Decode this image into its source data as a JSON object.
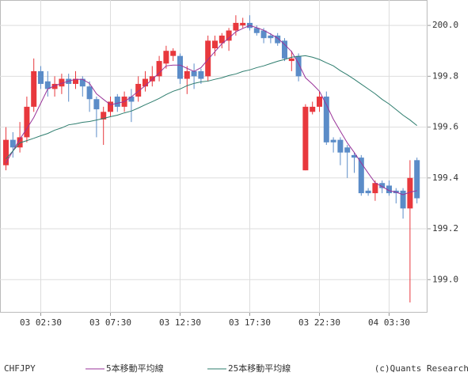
{
  "chart_data": {
    "type": "candlestick",
    "symbol": "CHFJPY",
    "credit": "(c)Quants Research",
    "categories": [
      null,
      null,
      null,
      null,
      null,
      "03 02:30",
      null,
      null,
      null,
      null,
      null,
      null,
      null,
      null,
      null,
      "03 07:30",
      null,
      null,
      null,
      null,
      null,
      null,
      null,
      null,
      null,
      "03 12:30",
      null,
      null,
      null,
      null,
      null,
      null,
      null,
      null,
      null,
      "03 17:30",
      null,
      null,
      null,
      null,
      null,
      null,
      null,
      null,
      null,
      "03 22:30",
      null,
      null,
      null,
      null,
      null,
      null,
      null,
      null,
      null,
      "04 03:30",
      null,
      null,
      null,
      null
    ],
    "open": [
      199.45,
      199.55,
      199.52,
      199.56,
      199.68,
      199.82,
      199.78,
      199.75,
      199.76,
      199.79,
      199.77,
      199.79,
      199.76,
      199.71,
      199.63,
      199.66,
      199.72,
      199.68,
      199.72,
      199.72,
      199.76,
      199.78,
      199.8,
      199.85,
      199.88,
      199.88,
      199.79,
      199.82,
      199.82,
      199.8,
      199.91,
      199.93,
      199.94,
      199.98,
      200.0,
      200.01,
      199.99,
      199.98,
      199.96,
      199.96,
      199.94,
      199.86,
      199.88,
      199.43,
      199.66,
      199.68,
      199.72,
      199.55,
      199.55,
      199.52,
      199.49,
      199.48,
      199.35,
      199.34,
      199.38,
      199.37,
      199.35,
      199.35,
      199.28,
      199.47
    ],
    "high": [
      199.6,
      199.58,
      199.62,
      199.72,
      199.87,
      199.84,
      199.82,
      199.8,
      199.81,
      199.81,
      199.82,
      199.8,
      199.78,
      199.72,
      199.68,
      199.72,
      199.73,
      199.74,
      199.75,
      199.8,
      199.82,
      199.84,
      199.88,
      199.92,
      199.91,
      199.89,
      199.84,
      199.85,
      199.83,
      199.96,
      199.96,
      199.97,
      199.99,
      200.04,
      200.03,
      200.04,
      200.0,
      199.99,
      199.97,
      199.97,
      199.95,
      199.9,
      199.89,
      199.69,
      199.7,
      199.74,
      199.74,
      199.56,
      199.56,
      199.53,
      199.5,
      199.49,
      199.36,
      199.39,
      199.39,
      199.39,
      199.36,
      199.36,
      199.47,
      199.48
    ],
    "low": [
      199.43,
      199.48,
      199.5,
      199.54,
      199.66,
      199.75,
      199.72,
      199.72,
      199.73,
      199.7,
      199.75,
      199.72,
      199.66,
      199.56,
      199.53,
      199.64,
      199.66,
      199.66,
      199.62,
      199.7,
      199.74,
      199.76,
      199.78,
      199.83,
      199.86,
      199.77,
      199.73,
      199.75,
      199.77,
      199.78,
      199.88,
      199.91,
      199.9,
      199.96,
      199.99,
      199.98,
      199.96,
      199.93,
      199.93,
      199.92,
      199.86,
      199.82,
      199.78,
      199.43,
      199.65,
      199.66,
      199.53,
      199.5,
      199.45,
      199.4,
      199.42,
      199.33,
      199.33,
      199.31,
      199.34,
      199.33,
      199.3,
      199.24,
      198.91,
      199.3
    ],
    "close": [
      199.55,
      199.52,
      199.56,
      199.68,
      199.82,
      199.77,
      199.75,
      199.77,
      199.79,
      199.77,
      199.79,
      199.76,
      199.71,
      199.67,
      199.66,
      199.7,
      199.68,
      199.72,
      199.7,
      199.77,
      199.79,
      199.8,
      199.86,
      199.9,
      199.9,
      199.79,
      199.82,
      199.8,
      199.79,
      199.94,
      199.94,
      199.96,
      199.98,
      200.01,
      200.01,
      199.99,
      199.97,
      199.95,
      199.95,
      199.93,
      199.87,
      199.87,
      199.8,
      199.68,
      199.68,
      199.72,
      199.54,
      199.54,
      199.5,
      199.5,
      199.48,
      199.34,
      199.34,
      199.38,
      199.36,
      199.34,
      199.34,
      199.28,
      199.4,
      199.32
    ],
    "up_color": "#e8383d",
    "down_color": "#5b8cc8",
    "series": [
      {
        "name": "5本移動平均線",
        "color": "#993399",
        "values": [
          199.459,
          199.506,
          199.553,
          199.594,
          199.638,
          199.694,
          199.75,
          199.763,
          199.772,
          199.781,
          199.788,
          199.788,
          199.772,
          199.731,
          199.709,
          199.688,
          199.694,
          199.7,
          199.719,
          199.741,
          199.763,
          199.788,
          199.813,
          199.841,
          199.844,
          199.844,
          199.831,
          199.819,
          199.834,
          199.866,
          199.897,
          199.928,
          199.95,
          199.975,
          199.988,
          200.0,
          199.991,
          199.981,
          199.966,
          199.95,
          199.925,
          199.897,
          199.85,
          199.794,
          199.769,
          199.741,
          199.688,
          199.631,
          199.584,
          199.538,
          199.5,
          199.459,
          199.419,
          199.381,
          199.366,
          199.35,
          199.344,
          199.334,
          199.344,
          199.35
        ]
      },
      {
        "name": "25本移動平均線",
        "color": "#2e7d6e",
        "values": [
          199.475,
          199.506,
          199.538,
          199.547,
          199.556,
          199.566,
          199.575,
          199.588,
          199.597,
          199.609,
          199.613,
          199.619,
          199.622,
          199.628,
          199.634,
          199.641,
          199.647,
          199.656,
          199.663,
          199.675,
          199.688,
          199.7,
          199.713,
          199.728,
          199.741,
          199.75,
          199.763,
          199.772,
          199.778,
          199.781,
          199.788,
          199.794,
          199.803,
          199.809,
          199.819,
          199.825,
          199.834,
          199.841,
          199.85,
          199.859,
          199.866,
          199.875,
          199.878,
          199.881,
          199.875,
          199.866,
          199.853,
          199.841,
          199.822,
          199.806,
          199.788,
          199.769,
          199.75,
          199.731,
          199.709,
          199.691,
          199.669,
          199.647,
          199.628,
          199.606
        ]
      }
    ],
    "ylim": [
      198.87,
      200.1
    ],
    "yticks": [
      {
        "value": 199,
        "label": "199.0"
      },
      199.2,
      199.4,
      199.6,
      199.8,
      {
        "value": 200,
        "label": "200.0"
      }
    ],
    "grid": true
  }
}
